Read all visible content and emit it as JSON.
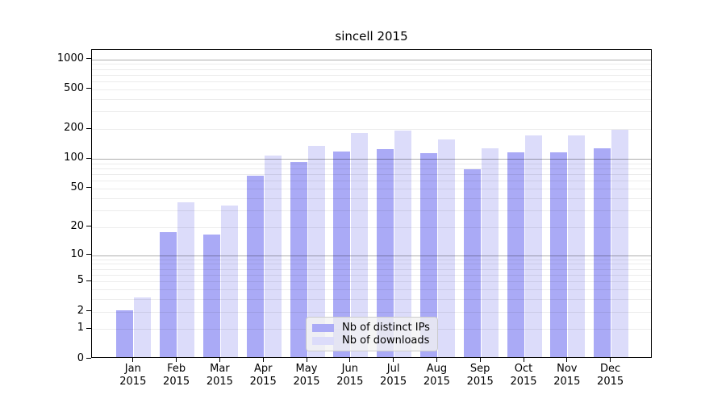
{
  "chart_data": {
    "type": "bar",
    "title": "sincell 2015",
    "categories": [
      "Jan",
      "Feb",
      "Mar",
      "Apr",
      "May",
      "Jun",
      "Jul",
      "Aug",
      "Sep",
      "Oct",
      "Nov",
      "Dec"
    ],
    "x_tick_year_line": "2015",
    "series": [
      {
        "name": "Nb of distinct IPs",
        "color": "#aaaaf6",
        "values": [
          2,
          17,
          16,
          65,
          90,
          115,
          120,
          110,
          75,
          112,
          112,
          123
        ]
      },
      {
        "name": "Nb of downloads",
        "color": "#dcdcfa",
        "values": [
          3,
          35,
          32,
          105,
          130,
          175,
          185,
          152,
          124,
          165,
          166,
          190
        ]
      }
    ],
    "xlabel": "",
    "ylabel": "",
    "yscale": "log(1+x)",
    "ytick_values": [
      0,
      1,
      2,
      5,
      10,
      20,
      50,
      100,
      200,
      500,
      1000
    ],
    "ytick_labels": [
      "0",
      "1",
      "2",
      "5",
      "10",
      "20",
      "50",
      "100",
      "200",
      "500",
      "1000"
    ],
    "ylim": [
      0,
      1250
    ],
    "grid": true,
    "legend_position": "lower center"
  }
}
